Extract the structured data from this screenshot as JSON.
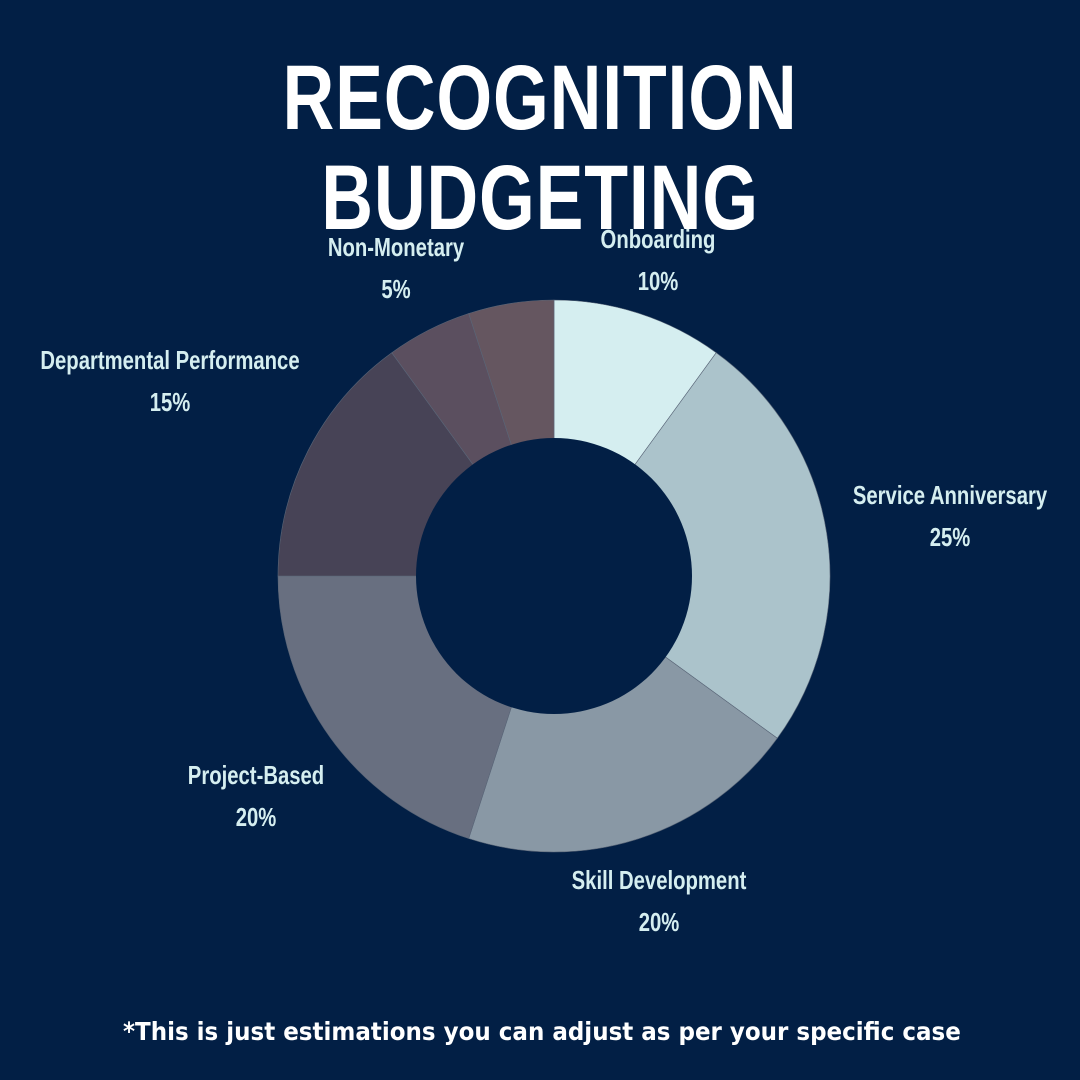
{
  "title": "RECOGNITION BUDGETING",
  "footnote": "*This is just estimations you can adjust as per your specific case",
  "colors": {
    "background": "#021f45",
    "title": "#ffffff",
    "label": "#d5eef0"
  },
  "labels": [
    {
      "name": "Onboarding",
      "value": "10%"
    },
    {
      "name": "Service Anniversary",
      "value": "25%"
    },
    {
      "name": "Skill Development",
      "value": "20%"
    },
    {
      "name": "Project-Based",
      "value": "20%"
    },
    {
      "name": "Departmental Performance",
      "value": "15%"
    },
    {
      "name": "Non-Monetary",
      "value": "5%"
    }
  ],
  "chart_data": {
    "type": "pie",
    "variant": "donut",
    "title": "RECOGNITION BUDGETING",
    "categories": [
      "Onboarding",
      "Service Anniversary",
      "Skill Development",
      "Project-Based",
      "Departmental Performance",
      "(unlabeled)",
      "Non-Monetary"
    ],
    "values": [
      10,
      25,
      20,
      20,
      15,
      5,
      5
    ],
    "unit": "%",
    "start_angle_deg": 0,
    "direction": "clockwise",
    "colors": [
      "#d5eef0",
      "#abc3cb",
      "#8998a5",
      "#686f80",
      "#474356",
      "#5b4f5f",
      "#655660"
    ],
    "annotation": "*This is just estimations you can adjust as per your specific case",
    "legend": "none (direct labels)"
  }
}
